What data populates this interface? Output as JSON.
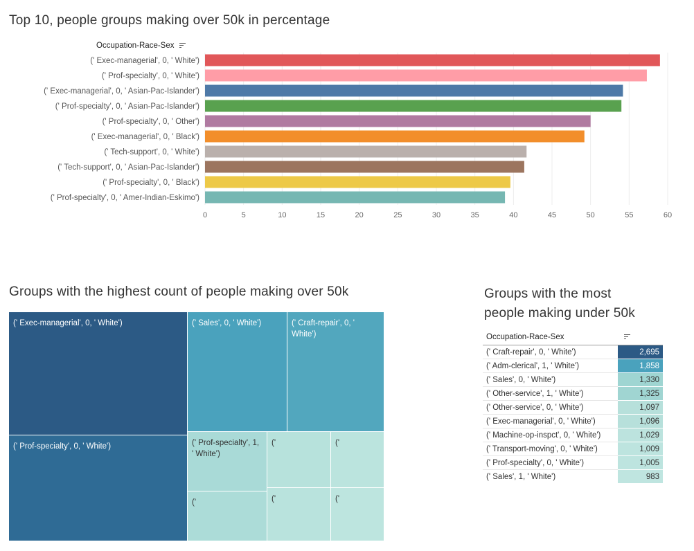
{
  "bar_section": {
    "title": "Top 10, people groups making over 50k in percentage",
    "field_label": "Occupation-Race-Sex"
  },
  "treemap_section": {
    "title": "Groups with the highest count of people making over 50k"
  },
  "table_section": {
    "title_line1": "Groups with the most",
    "title_line2": "people making under 50k",
    "field_label": "Occupation-Race-Sex"
  },
  "chart_data": [
    {
      "type": "bar",
      "orientation": "horizontal",
      "title": "Top 10, people groups making over 50k in percentage",
      "categories": [
        "(' Exec-managerial', 0, ' White')",
        "(' Prof-specialty', 0, ' White')",
        "(' Exec-managerial', 0, ' Asian-Pac-Islander')",
        "(' Prof-specialty', 0, ' Asian-Pac-Islander')",
        "(' Prof-specialty', 0, ' Other')",
        "(' Exec-managerial', 0, ' Black')",
        "(' Tech-support', 0, ' White')",
        "(' Tech-support', 0, ' Asian-Pac-Islander')",
        "(' Prof-specialty', 0, ' Black')",
        "(' Prof-specialty', 0, ' Amer-Indian-Eskimo')"
      ],
      "values": [
        59.0,
        57.3,
        54.2,
        54.0,
        50.0,
        49.2,
        41.7,
        41.4,
        39.6,
        38.9
      ],
      "colors": [
        "#e15759",
        "#ff9da7",
        "#4e79a7",
        "#59a14f",
        "#b07aa1",
        "#f28e2b",
        "#bab0ac",
        "#9c755f",
        "#edc948",
        "#76b7b2"
      ],
      "xlim": [
        0,
        60
      ],
      "xticks": [
        0,
        5,
        10,
        15,
        20,
        25,
        30,
        35,
        40,
        45,
        50,
        55,
        60
      ],
      "grid": true
    },
    {
      "type": "treemap",
      "title": "Groups with the highest count of people making over 50k",
      "tiles": [
        {
          "label": "(' Exec-managerial', 0, ' White')",
          "color": "#2c5a85"
        },
        {
          "label": "(' Prof-specialty', 0, ' White')",
          "color": "#2f6b95"
        },
        {
          "label": "(' Sales', 0, ' White')",
          "color": "#4aa2bd"
        },
        {
          "label": "(' Craft-repair', 0, ' White')",
          "color": "#52a7be"
        },
        {
          "label": "(' Prof-specialty', 1, ' White')",
          "color": "#a9dad7"
        },
        {
          "label": "('",
          "color": "#b7e2dc"
        },
        {
          "label": "('",
          "color": "#bbe4de"
        },
        {
          "label": "('",
          "color": "#acdcd8"
        },
        {
          "label": "('",
          "color": "#b9e3dd"
        },
        {
          "label": "('",
          "color": "#bde5df"
        }
      ]
    },
    {
      "type": "table",
      "title": "Groups with the most people making under 50k",
      "rows": [
        {
          "label": "(' Craft-repair', 0, ' White')",
          "value": 2695,
          "display": "2,695",
          "color": "#2c5a85",
          "text_color": "#ffffff"
        },
        {
          "label": "(' Adm-clerical', 1, ' White')",
          "value": 1858,
          "display": "1,858",
          "color": "#4aa2bd",
          "text_color": "#ffffff"
        },
        {
          "label": "(' Sales', 0, ' White')",
          "value": 1330,
          "display": "1,330",
          "color": "#9fd5d2",
          "text_color": "#333333"
        },
        {
          "label": "(' Other-service', 1, ' White')",
          "value": 1325,
          "display": "1,325",
          "color": "#a0d5d2",
          "text_color": "#333333"
        },
        {
          "label": "(' Other-service', 0, ' White')",
          "value": 1097,
          "display": "1,097",
          "color": "#b7e0db",
          "text_color": "#333333"
        },
        {
          "label": "(' Exec-managerial', 0, ' White')",
          "value": 1096,
          "display": "1,096",
          "color": "#b7e0db",
          "text_color": "#333333"
        },
        {
          "label": "(' Machine-op-inspct', 0, ' White')",
          "value": 1029,
          "display": "1,029",
          "color": "#bce3de",
          "text_color": "#333333"
        },
        {
          "label": "(' Transport-moving', 0, ' White')",
          "value": 1009,
          "display": "1,009",
          "color": "#bde4df",
          "text_color": "#333333"
        },
        {
          "label": "(' Prof-specialty', 0, ' White')",
          "value": 1005,
          "display": "1,005",
          "color": "#bde4df",
          "text_color": "#333333"
        },
        {
          "label": "(' Sales', 1, ' White')",
          "value": 983,
          "display": "983",
          "color": "#bfe5e0",
          "text_color": "#333333"
        }
      ]
    }
  ]
}
